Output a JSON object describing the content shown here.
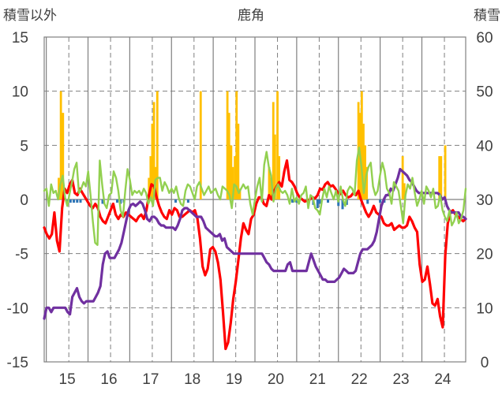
{
  "chart_data": {
    "type": "line",
    "title": "鹿角",
    "left_axis_label": "積雪以外",
    "right_axis_label": "積雪",
    "ylim_left": [
      -15,
      15
    ],
    "ylim_right": [
      0,
      60
    ],
    "y_ticks_left": [
      "15",
      "10",
      "5",
      "0",
      "-5",
      "-10",
      "-15"
    ],
    "y_ticks_right": [
      "60",
      "50",
      "40",
      "30",
      "20",
      "10",
      "0"
    ],
    "x_ticks": [
      "15",
      "16",
      "17",
      "18",
      "19",
      "20",
      "21",
      "22",
      "23",
      "24"
    ],
    "grid": true,
    "colors": {
      "red": "#ff0000",
      "purple": "#7030a0",
      "green": "#92d050",
      "snow": "#ffc000",
      "blue": "#2e75b6",
      "grid": "#7f7f7f",
      "zero": "#808080"
    },
    "series": [
      {
        "color_key": "red",
        "values": [
          -2.6,
          -3.2,
          -3.6,
          -3.2,
          -1.2,
          -3.8,
          -4.8,
          -0.8,
          1.0,
          0.6,
          1.4,
          1.8,
          0.6,
          0.4,
          1.0,
          0.6,
          0.2,
          -0.2,
          -0.6,
          -0.8,
          -0.4,
          -0.8,
          -1.6,
          -2.0,
          -2.2,
          -1.6,
          -1.0,
          -0.4,
          -1.4,
          -1.8,
          -1.4,
          -1.6,
          -1.2,
          -1.4,
          -1.6,
          -1.8,
          -2.0,
          -1.6,
          -1.4,
          -1.8,
          -1.0,
          0.4,
          1.4,
          1.2,
          0.2,
          -0.6,
          -1.2,
          -1.6,
          -1.8,
          -1.0,
          -1.4,
          -0.8,
          -1.0,
          -1.6,
          -1.6,
          -1.4,
          -1.2,
          -1.0,
          -1.2,
          -1.0,
          -1.8,
          -3.6,
          -6.2,
          -7.0,
          -6.4,
          -4.6,
          -4.4,
          -4.8,
          -5.8,
          -7.4,
          -10.4,
          -13.8,
          -13.2,
          -11.4,
          -9.2,
          -7.6,
          -5.6,
          -3.6,
          -2.2,
          -2.8,
          -3.2,
          -1.8,
          -1.4,
          -0.4,
          0.2,
          0.2,
          -0.4,
          -0.6,
          0.4,
          0.0,
          0.8,
          1.2,
          1.6,
          1.2,
          2.6,
          3.6,
          1.8,
          1.6,
          1.2,
          0.6,
          0.2,
          0.0,
          -0.2,
          -0.1,
          0.0,
          0.2,
          0.1,
          0.4,
          1.0,
          0.9,
          1.4,
          1.6,
          1.2,
          1.3,
          1.0,
          0.6,
          0.5,
          0.8,
          0.4,
          0.2,
          0.3,
          0.6,
          0.4,
          0.8,
          0.0,
          -0.6,
          -1.2,
          -1.6,
          -1.2,
          -0.6,
          -1.2,
          -1.4,
          -1.6,
          -2.2,
          -2.4,
          -2.4,
          -2.2,
          -2.8,
          -2.6,
          -2.4,
          -2.6,
          -2.6,
          -2.4,
          -1.6,
          -2.0,
          -2.6,
          -3.0,
          -6.0,
          -7.6,
          -7.4,
          -6.2,
          -7.8,
          -9.6,
          -9.8,
          -9.2,
          -10.8,
          -11.8,
          -5.2,
          -2.2,
          -1.2,
          -1.0,
          -1.4,
          -1.6,
          -1.8,
          -2.0,
          -1.8
        ]
      },
      {
        "color_key": "purple",
        "values": [
          -11.0,
          -10.0,
          -10.0,
          -10.4,
          -10.0,
          -10.0,
          -10.0,
          -10.0,
          -10.0,
          -10.0,
          -10.4,
          -10.6,
          -9.0,
          -8.6,
          -8.2,
          -9.0,
          -9.4,
          -9.6,
          -9.4,
          -9.4,
          -9.4,
          -9.4,
          -9.0,
          -8.6,
          -8.0,
          -6.0,
          -5.0,
          -4.8,
          -5.4,
          -5.4,
          -5.4,
          -5.0,
          -4.6,
          -4.0,
          -3.0,
          -2.0,
          -1.0,
          -0.5,
          -0.4,
          -0.6,
          -0.4,
          -0.2,
          -0.4,
          -1.0,
          -1.8,
          -2.0,
          -1.6,
          -1.6,
          -1.8,
          -2.2,
          -2.4,
          -2.4,
          -2.6,
          -2.6,
          -2.6,
          -2.6,
          -2.8,
          -2.4,
          -1.8,
          -1.0,
          -0.8,
          -0.8,
          -1.0,
          -1.2,
          -1.4,
          -1.6,
          -1.6,
          -1.6,
          -2.0,
          -2.6,
          -2.8,
          -3.0,
          -3.2,
          -3.4,
          -3.4,
          -3.2,
          -3.8,
          -3.6,
          -4.4,
          -4.6,
          -4.8,
          -5.0,
          -5.0,
          -5.0,
          -5.0,
          -5.0,
          -5.0,
          -5.0,
          -5.0,
          -5.0,
          -5.0,
          -5.0,
          -5.0,
          -5.0,
          -5.4,
          -5.8,
          -6.0,
          -6.4,
          -6.6,
          -6.6,
          -6.6,
          -6.6,
          -6.6,
          -6.6,
          -6.0,
          -5.8,
          -6.6,
          -6.6,
          -6.6,
          -6.6,
          -6.6,
          -6.6,
          -6.6,
          -5.8,
          -5.0,
          -5.6,
          -6.2,
          -6.6,
          -7.0,
          -7.4,
          -7.4,
          -7.6,
          -7.6,
          -7.6,
          -7.6,
          -7.4,
          -7.2,
          -6.8,
          -6.4,
          -6.6,
          -6.8,
          -6.8,
          -6.8,
          -6.6,
          -5.8,
          -5.0,
          -4.6,
          -4.6,
          -4.6,
          -4.4,
          -4.2,
          -3.8,
          -3.0,
          -1.8,
          -0.6,
          0.0,
          0.4,
          0.4,
          1.0,
          0.8,
          1.4,
          2.0,
          2.8,
          2.6,
          2.4,
          2.2,
          1.8,
          1.6,
          1.2,
          0.8,
          0.6,
          0.6,
          0.6,
          0.6,
          0.6,
          0.6,
          0.6,
          0.6,
          0.6,
          0.4,
          0.0,
          0.2,
          -0.6,
          -1.0,
          -1.2,
          -1.2,
          -1.2,
          -1.2,
          -1.6,
          -1.6,
          -1.8
        ]
      },
      {
        "color_key": "green",
        "values": [
          0.8,
          1.0,
          -0.6,
          1.4,
          0.6,
          0.8,
          0.0,
          1.4,
          2.2,
          0.2,
          -0.6,
          0.6,
          1.6,
          2.8,
          3.4,
          0.6,
          1.0,
          1.6,
          1.2,
          2.6,
          0.4,
          -2.0,
          -4.0,
          -4.2,
          3.6,
          1.4,
          -0.4,
          -0.8,
          0.4,
          0.6,
          2.6,
          2.0,
          0.8,
          -1.0,
          -1.6,
          0.8,
          2.8,
          1.8,
          0.4,
          0.8,
          0.6,
          0.8,
          0.4,
          1.0,
          0.6,
          -0.4,
          0.2,
          -0.6,
          1.8,
          2.0,
          2.0,
          0.8,
          1.6,
          1.2,
          0.6,
          1.0,
          0.6,
          1.2,
          0.2,
          -0.4,
          -0.6,
          0.8,
          1.4,
          1.2,
          0.6,
          0.0,
          1.2,
          1.6,
          1.0,
          0.4,
          0.8,
          1.2,
          0.6,
          0.8,
          1.0,
          0.4,
          0.0,
          1.2,
          1.0,
          0.8,
          0.4,
          -0.8,
          1.4,
          1.2,
          0.6,
          1.0,
          1.4,
          1.0,
          1.2,
          -0.4,
          -1.4,
          0.0,
          1.2,
          2.0,
          -0.2,
          3.2,
          4.4,
          3.0,
          2.2,
          -0.2,
          1.0,
          1.4,
          0.8,
          0.6,
          0.8,
          0.4,
          -0.4,
          1.0,
          -0.2,
          0.2,
          -0.4,
          0.4,
          0.6,
          1.2,
          -0.8,
          0.4,
          0.2,
          -0.8,
          -1.0,
          -1.4,
          0.0,
          1.0,
          0.2,
          1.2,
          0.6,
          0.0,
          0.8,
          -0.2,
          1.2,
          0.0,
          -0.6,
          0.8,
          1.2,
          1.0,
          0.4,
          3.6,
          4.8,
          3.0,
          0.6,
          2.2,
          3.0,
          3.4,
          1.2,
          0.4,
          0.8,
          2.2,
          3.4,
          2.6,
          1.0,
          0.6,
          -0.4,
          1.6,
          1.2,
          0.8,
          -0.6,
          -2.2,
          0.4,
          1.4,
          1.0,
          2.0,
          0.6,
          -0.6,
          0.0,
          0.8,
          -0.4,
          1.2,
          0.8,
          0.2,
          1.0,
          -0.8,
          -0.6,
          0.4,
          -1.0,
          -1.6,
          -2.0,
          -1.0,
          -2.4,
          -2.0,
          -1.2,
          -2.2,
          -1.8,
          -1.0,
          1.0
        ]
      }
    ],
    "snow_depth": [
      {
        "x": 14.8,
        "value": 34
      },
      {
        "x": 14.85,
        "value": 50
      },
      {
        "x": 14.9,
        "value": 46
      },
      {
        "x": 16.96,
        "value": 34
      },
      {
        "x": 17.0,
        "value": 38
      },
      {
        "x": 17.04,
        "value": 44
      },
      {
        "x": 17.08,
        "value": 48
      },
      {
        "x": 17.12,
        "value": 36
      },
      {
        "x": 17.16,
        "value": 50
      },
      {
        "x": 18.2,
        "value": 50
      },
      {
        "x": 18.84,
        "value": 50
      },
      {
        "x": 18.88,
        "value": 46
      },
      {
        "x": 18.93,
        "value": 40
      },
      {
        "x": 18.97,
        "value": 36
      },
      {
        "x": 19.02,
        "value": 38
      },
      {
        "x": 19.06,
        "value": 50
      },
      {
        "x": 19.1,
        "value": 44
      },
      {
        "x": 19.14,
        "value": 32
      },
      {
        "x": 19.84,
        "value": 36
      },
      {
        "x": 19.88,
        "value": 34
      },
      {
        "x": 19.94,
        "value": 48
      },
      {
        "x": 19.98,
        "value": 42
      },
      {
        "x": 20.04,
        "value": 50
      },
      {
        "x": 20.08,
        "value": 38
      },
      {
        "x": 21.98,
        "value": 48
      },
      {
        "x": 22.02,
        "value": 46
      },
      {
        "x": 22.06,
        "value": 50
      },
      {
        "x": 22.1,
        "value": 44
      },
      {
        "x": 22.14,
        "value": 40
      },
      {
        "x": 22.18,
        "value": 36
      },
      {
        "x": 23.04,
        "value": 38
      },
      {
        "x": 23.08,
        "value": 33
      },
      {
        "x": 23.92,
        "value": 38
      },
      {
        "x": 23.96,
        "value": 38
      },
      {
        "x": 24.06,
        "value": 40
      }
    ],
    "blue_bars": [
      {
        "x": 15.0,
        "value": -0.3
      },
      {
        "x": 15.08,
        "value": -0.3
      },
      {
        "x": 15.16,
        "value": -0.3
      },
      {
        "x": 15.24,
        "value": -0.3
      },
      {
        "x": 15.32,
        "value": -0.3
      },
      {
        "x": 15.85,
        "value": -0.4
      },
      {
        "x": 16.2,
        "value": -0.3
      },
      {
        "x": 16.28,
        "value": -0.4
      },
      {
        "x": 16.36,
        "value": -0.3
      },
      {
        "x": 17.6,
        "value": -0.3
      },
      {
        "x": 17.9,
        "value": -0.3
      },
      {
        "x": 20.4,
        "value": -0.3
      },
      {
        "x": 20.5,
        "value": -0.3
      },
      {
        "x": 20.9,
        "value": -0.5
      },
      {
        "x": 21.0,
        "value": -0.8
      },
      {
        "x": 21.05,
        "value": -0.4
      },
      {
        "x": 21.25,
        "value": -0.3
      },
      {
        "x": 21.5,
        "value": -0.6
      },
      {
        "x": 21.6,
        "value": -0.9
      },
      {
        "x": 21.7,
        "value": -0.5
      },
      {
        "x": 22.2,
        "value": -0.4
      },
      {
        "x": 22.5,
        "value": -0.3
      },
      {
        "x": 22.6,
        "value": -0.3
      }
    ]
  }
}
